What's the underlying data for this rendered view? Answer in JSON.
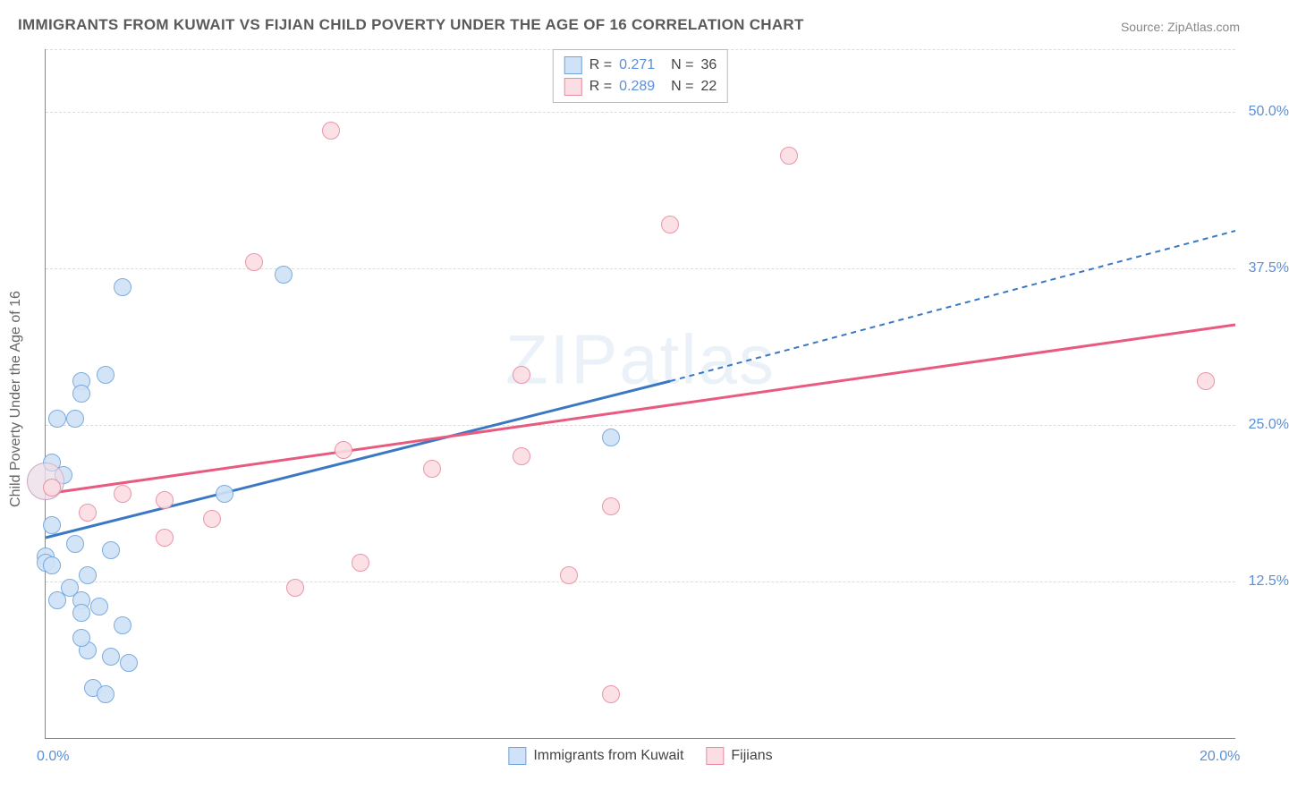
{
  "title": "IMMIGRANTS FROM KUWAIT VS FIJIAN CHILD POVERTY UNDER THE AGE OF 16 CORRELATION CHART",
  "source": "Source: ZipAtlas.com",
  "y_axis_label": "Child Poverty Under the Age of 16",
  "watermark": "ZIPatlas",
  "chart": {
    "type": "scatter",
    "xlim": [
      0,
      20
    ],
    "ylim": [
      0,
      55
    ],
    "x_ticks": [
      {
        "value": 0,
        "label": "0.0%"
      },
      {
        "value": 20,
        "label": "20.0%"
      }
    ],
    "y_ticks": [
      {
        "value": 12.5,
        "label": "12.5%"
      },
      {
        "value": 25.0,
        "label": "25.0%"
      },
      {
        "value": 37.5,
        "label": "37.5%"
      },
      {
        "value": 50.0,
        "label": "50.0%"
      }
    ],
    "point_radius": 9,
    "point_stroke_width": 1.5,
    "background_color": "#ffffff",
    "grid_color": "#dcdcdc"
  },
  "series": [
    {
      "key": "kuwait",
      "label": "Immigrants from Kuwait",
      "fill": "#cfe2f7",
      "stroke": "#6fa3dc",
      "line_color": "#3b78c4",
      "r_value": "0.271",
      "n_value": "36",
      "trend": {
        "x1": 0,
        "y1": 16.0,
        "x2_solid": 10.5,
        "y2_solid": 28.5,
        "x2_dash": 20,
        "y2_dash": 40.5
      },
      "points": [
        {
          "x": 0.0,
          "y": 20.5,
          "r": 20
        },
        {
          "x": 0.0,
          "y": 14.5
        },
        {
          "x": 0.0,
          "y": 14.0
        },
        {
          "x": 0.1,
          "y": 13.8
        },
        {
          "x": 0.1,
          "y": 17.0
        },
        {
          "x": 0.3,
          "y": 21.0
        },
        {
          "x": 0.2,
          "y": 25.5
        },
        {
          "x": 0.5,
          "y": 25.5
        },
        {
          "x": 0.6,
          "y": 28.5
        },
        {
          "x": 1.0,
          "y": 29.0
        },
        {
          "x": 0.6,
          "y": 27.5
        },
        {
          "x": 1.3,
          "y": 36.0
        },
        {
          "x": 4.0,
          "y": 37.0
        },
        {
          "x": 0.2,
          "y": 11.0
        },
        {
          "x": 0.6,
          "y": 11.0
        },
        {
          "x": 0.6,
          "y": 10.0
        },
        {
          "x": 0.9,
          "y": 10.5
        },
        {
          "x": 1.3,
          "y": 9.0
        },
        {
          "x": 0.7,
          "y": 7.0
        },
        {
          "x": 1.1,
          "y": 6.5
        },
        {
          "x": 1.4,
          "y": 6.0
        },
        {
          "x": 0.8,
          "y": 4.0
        },
        {
          "x": 1.0,
          "y": 3.5
        },
        {
          "x": 1.1,
          "y": 15.0
        },
        {
          "x": 0.5,
          "y": 15.5
        },
        {
          "x": 0.7,
          "y": 13.0
        },
        {
          "x": 0.4,
          "y": 12.0
        },
        {
          "x": 9.5,
          "y": 24.0
        },
        {
          "x": 3.0,
          "y": 19.5
        },
        {
          "x": 0.6,
          "y": 8.0
        },
        {
          "x": 0.1,
          "y": 22.0
        }
      ]
    },
    {
      "key": "fijians",
      "label": "Fijians",
      "fill": "#fbdde4",
      "stroke": "#e88ba1",
      "line_color": "#e85b7f",
      "r_value": "0.289",
      "n_value": "22",
      "trend": {
        "x1": 0,
        "y1": 19.5,
        "x2_solid": 20,
        "y2_solid": 33.0
      },
      "points": [
        {
          "x": 0.0,
          "y": 20.5,
          "r": 20
        },
        {
          "x": 4.8,
          "y": 48.5
        },
        {
          "x": 3.5,
          "y": 38.0
        },
        {
          "x": 12.5,
          "y": 46.5
        },
        {
          "x": 10.5,
          "y": 41.0
        },
        {
          "x": 8.0,
          "y": 29.0
        },
        {
          "x": 8.0,
          "y": 22.5
        },
        {
          "x": 6.5,
          "y": 21.5
        },
        {
          "x": 5.0,
          "y": 23.0
        },
        {
          "x": 5.3,
          "y": 14.0
        },
        {
          "x": 4.2,
          "y": 12.0
        },
        {
          "x": 2.0,
          "y": 16.0
        },
        {
          "x": 2.0,
          "y": 19.0
        },
        {
          "x": 1.3,
          "y": 19.5
        },
        {
          "x": 2.8,
          "y": 17.5
        },
        {
          "x": 0.7,
          "y": 18.0
        },
        {
          "x": 8.8,
          "y": 13.0
        },
        {
          "x": 9.5,
          "y": 18.5
        },
        {
          "x": 9.5,
          "y": 3.5
        },
        {
          "x": 19.5,
          "y": 28.5
        },
        {
          "x": 0.1,
          "y": 20.0
        }
      ]
    }
  ],
  "legend_labels": {
    "r_prefix": "R  =",
    "n_prefix": "N  ="
  }
}
